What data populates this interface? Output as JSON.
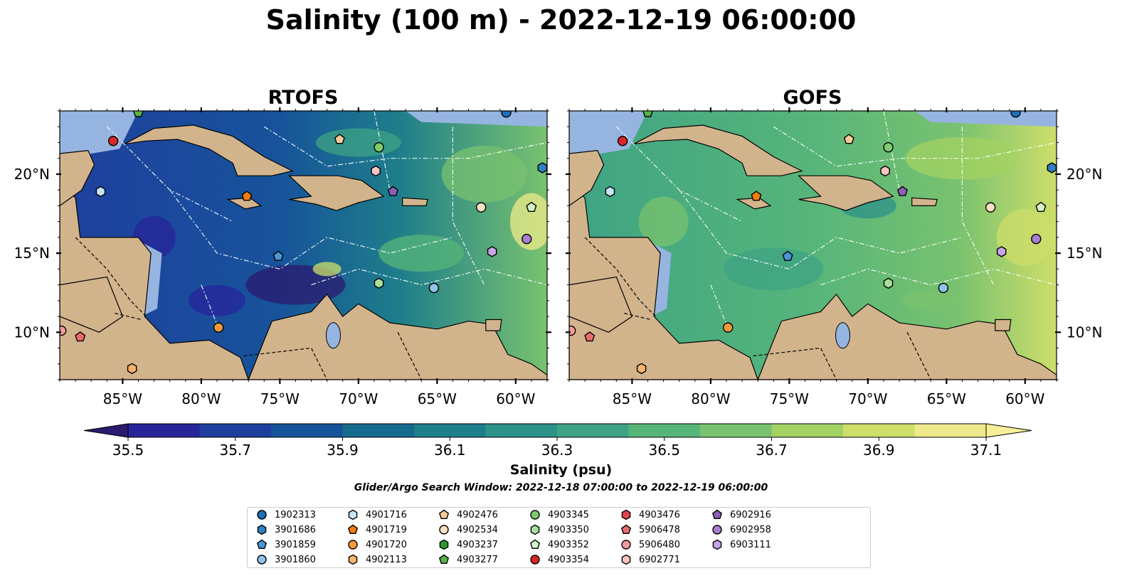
{
  "title": "Salinity (100 m) - 2022-12-19 06:00:00",
  "panels": [
    {
      "id": "rtofs",
      "title": "RTOFS"
    },
    {
      "id": "gofs",
      "title": "GOFS"
    }
  ],
  "axes": {
    "lon_ticks": [
      "85°W",
      "80°W",
      "75°W",
      "70°W",
      "65°W",
      "60°W"
    ],
    "lon_values": [
      -85,
      -80,
      -75,
      -70,
      -65,
      -60
    ],
    "lat_ticks": [
      "20°N",
      "15°N",
      "10°N"
    ],
    "lat_values": [
      20,
      15,
      10
    ],
    "lon_range": [
      -89,
      -58
    ],
    "lat_range": [
      7,
      24
    ]
  },
  "colorbar": {
    "label": "Salinity (psu)",
    "tick_labels": [
      "35.5",
      "35.7",
      "35.9",
      "36.1",
      "36.3",
      "36.5",
      "36.7",
      "36.9",
      "37.1"
    ],
    "colors": [
      "#2b1a6e",
      "#27249a",
      "#1f3f9e",
      "#17539a",
      "#166a8e",
      "#1e7f8a",
      "#2d928a",
      "#3ea384",
      "#57b57a",
      "#79c26f",
      "#a3d162",
      "#cede6a",
      "#eee98a",
      "#f7ef97"
    ],
    "extend": "both"
  },
  "search_window": "Glider/Argo Search Window: 2022-12-18 07:00:00 to 2022-12-19 06:00:00",
  "legend": [
    {
      "id": "1902313",
      "shape": "circle",
      "color": "#1f6fb5"
    },
    {
      "id": "3901686",
      "shape": "hexagon",
      "color": "#2f7fc1"
    },
    {
      "id": "3901859",
      "shape": "pentagon",
      "color": "#4a97d6"
    },
    {
      "id": "3901860",
      "shape": "circle",
      "color": "#8fc3ea"
    },
    {
      "id": "4901716",
      "shape": "hexagon",
      "color": "#c6e4f7"
    },
    {
      "id": "4901719",
      "shape": "pentagon",
      "color": "#f07d12"
    },
    {
      "id": "4901720",
      "shape": "circle",
      "color": "#f59a3b"
    },
    {
      "id": "4902113",
      "shape": "hexagon",
      "color": "#f7b36b"
    },
    {
      "id": "4902476",
      "shape": "pentagon",
      "color": "#f8cb99"
    },
    {
      "id": "4902534",
      "shape": "circle",
      "color": "#fbe0c3"
    },
    {
      "id": "4903237",
      "shape": "hexagon",
      "color": "#2e9a2e"
    },
    {
      "id": "4903277",
      "shape": "pentagon",
      "color": "#56b349"
    },
    {
      "id": "4903345",
      "shape": "circle",
      "color": "#7fcc6f"
    },
    {
      "id": "4903350",
      "shape": "hexagon",
      "color": "#a8df9b"
    },
    {
      "id": "4903352",
      "shape": "pentagon",
      "color": "#d3f2c8"
    },
    {
      "id": "4903354",
      "shape": "circle",
      "color": "#d62728"
    },
    {
      "id": "4903476",
      "shape": "hexagon",
      "color": "#e0474a"
    },
    {
      "id": "5906478",
      "shape": "pentagon",
      "color": "#ea6b6e"
    },
    {
      "id": "5906480",
      "shape": "circle",
      "color": "#f39a9b"
    },
    {
      "id": "6902771",
      "shape": "hexagon",
      "color": "#f9c5c4"
    },
    {
      "id": "6902916",
      "shape": "pentagon",
      "color": "#8d5fb8"
    },
    {
      "id": "6902958",
      "shape": "circle",
      "color": "#a67fd0"
    },
    {
      "id": "6903111",
      "shape": "hexagon",
      "color": "#c4a6e6"
    }
  ],
  "markers": [
    {
      "id": "4903354",
      "lon": -85.6,
      "lat": 22.1
    },
    {
      "id": "4903277",
      "lon": -84.0,
      "lat": 23.9
    },
    {
      "id": "4902476",
      "lon": -71.2,
      "lat": 22.2
    },
    {
      "id": "4903345",
      "lon": -68.7,
      "lat": 21.7
    },
    {
      "id": "6902771",
      "lon": -68.9,
      "lat": 20.2
    },
    {
      "id": "4901716",
      "lon": -86.4,
      "lat": 18.9
    },
    {
      "id": "4901719",
      "lon": -77.1,
      "lat": 18.6
    },
    {
      "id": "6902916",
      "lon": -67.8,
      "lat": 18.9
    },
    {
      "id": "1902313",
      "lon": -60.6,
      "lat": 23.9
    },
    {
      "id": "3901686",
      "lon": -58.3,
      "lat": 20.4
    },
    {
      "id": "4902534",
      "lon": -62.2,
      "lat": 17.9
    },
    {
      "id": "4903352",
      "lon": -59.0,
      "lat": 17.9
    },
    {
      "id": "6902958",
      "lon": -59.3,
      "lat": 15.9
    },
    {
      "id": "6903111",
      "lon": -61.5,
      "lat": 15.1
    },
    {
      "id": "3901859",
      "lon": -75.1,
      "lat": 14.8
    },
    {
      "id": "4903350",
      "lon": -68.7,
      "lat": 13.1
    },
    {
      "id": "3901860",
      "lon": -65.2,
      "lat": 12.8
    },
    {
      "id": "4901720",
      "lon": -78.9,
      "lat": 10.3
    },
    {
      "id": "5906480",
      "lon": -88.9,
      "lat": 10.1
    },
    {
      "id": "5906478",
      "lon": -87.7,
      "lat": 9.7
    },
    {
      "id": "4902113",
      "lon": -84.4,
      "lat": 7.7
    }
  ]
}
